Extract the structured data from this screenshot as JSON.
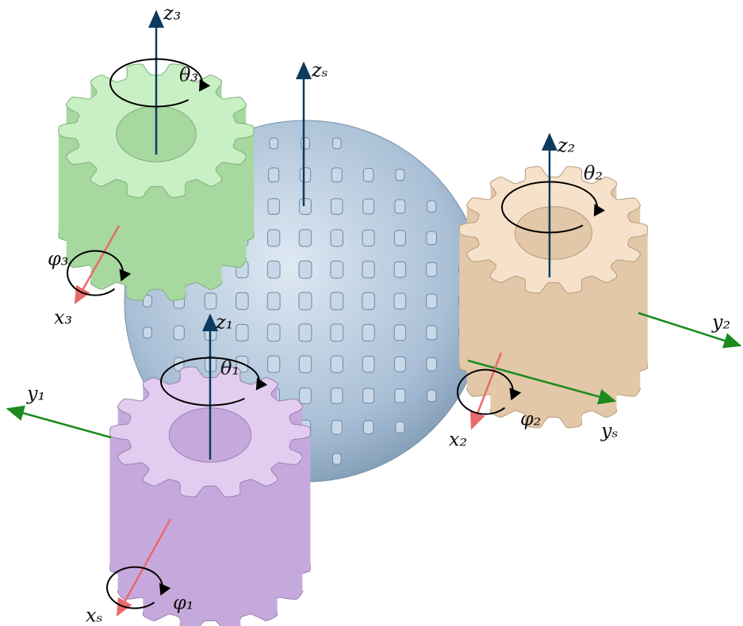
{
  "labels": {
    "z3": "z₃",
    "theta3": "θ₃",
    "phi3": "φ₃",
    "x3": "x₃",
    "zs": "zₛ",
    "ys": "yₛ",
    "xs": "xₛ",
    "z2": "z₂",
    "theta2": "θ₂",
    "phi2": "φ₂",
    "x2": "x₂",
    "y2": "y₂",
    "z1": "z₁",
    "theta1": "θ₁",
    "phi1": "φ₁",
    "y1": "y₁"
  }
}
